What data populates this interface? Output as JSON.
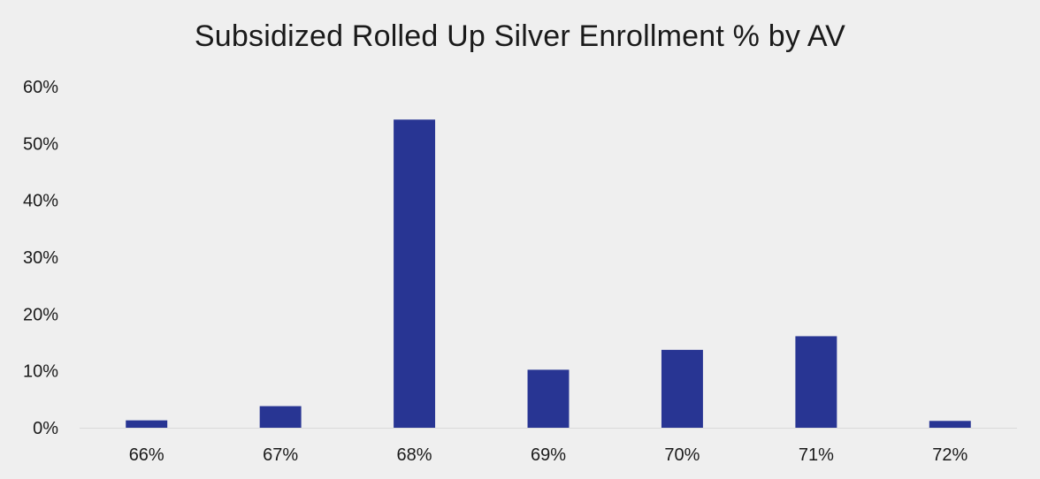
{
  "chart_data": {
    "type": "bar",
    "title": "Subsidized Rolled Up Silver Enrollment % by AV",
    "xlabel": "",
    "ylabel": "",
    "categories": [
      "66%",
      "67%",
      "68%",
      "69%",
      "70%",
      "71%",
      "72%"
    ],
    "values": [
      1.3,
      3.8,
      54.2,
      10.2,
      13.7,
      16.1,
      1.2
    ],
    "ylim": [
      0,
      60
    ],
    "yticks": [
      0,
      10,
      20,
      30,
      40,
      50,
      60
    ],
    "ytick_labels": [
      "0%",
      "10%",
      "20%",
      "30%",
      "40%",
      "50%",
      "60%"
    ],
    "bar_color": "#283593",
    "background_color": "#efefef",
    "grid": false,
    "legend": "none"
  }
}
